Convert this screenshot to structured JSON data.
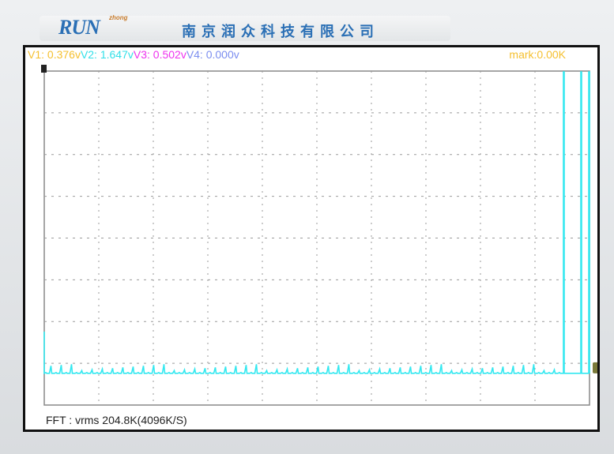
{
  "header": {
    "logo_main": "RUN",
    "logo_sub": "zhong",
    "company": "南京润众科技有限公司"
  },
  "readouts": [
    {
      "label": "V1: 0.376v",
      "color": "#f5c030"
    },
    {
      "label": "V2: 1.647v",
      "color": "#33e0e8"
    },
    {
      "label": "V3: 0.502v",
      "color": "#ee33ee"
    },
    {
      "label": "V4: 0.000v",
      "color": "#7c8ef0"
    }
  ],
  "mark": "mark:0.00K",
  "footer": "FFT : vrms 204.8K(4096K/S)",
  "colors": {
    "trace": "#33e8f0",
    "grid": "#9a9a9a",
    "trigger_marker": "#7a7a3a"
  },
  "grid": {
    "x_divisions": 10,
    "y_divisions": 8
  }
}
